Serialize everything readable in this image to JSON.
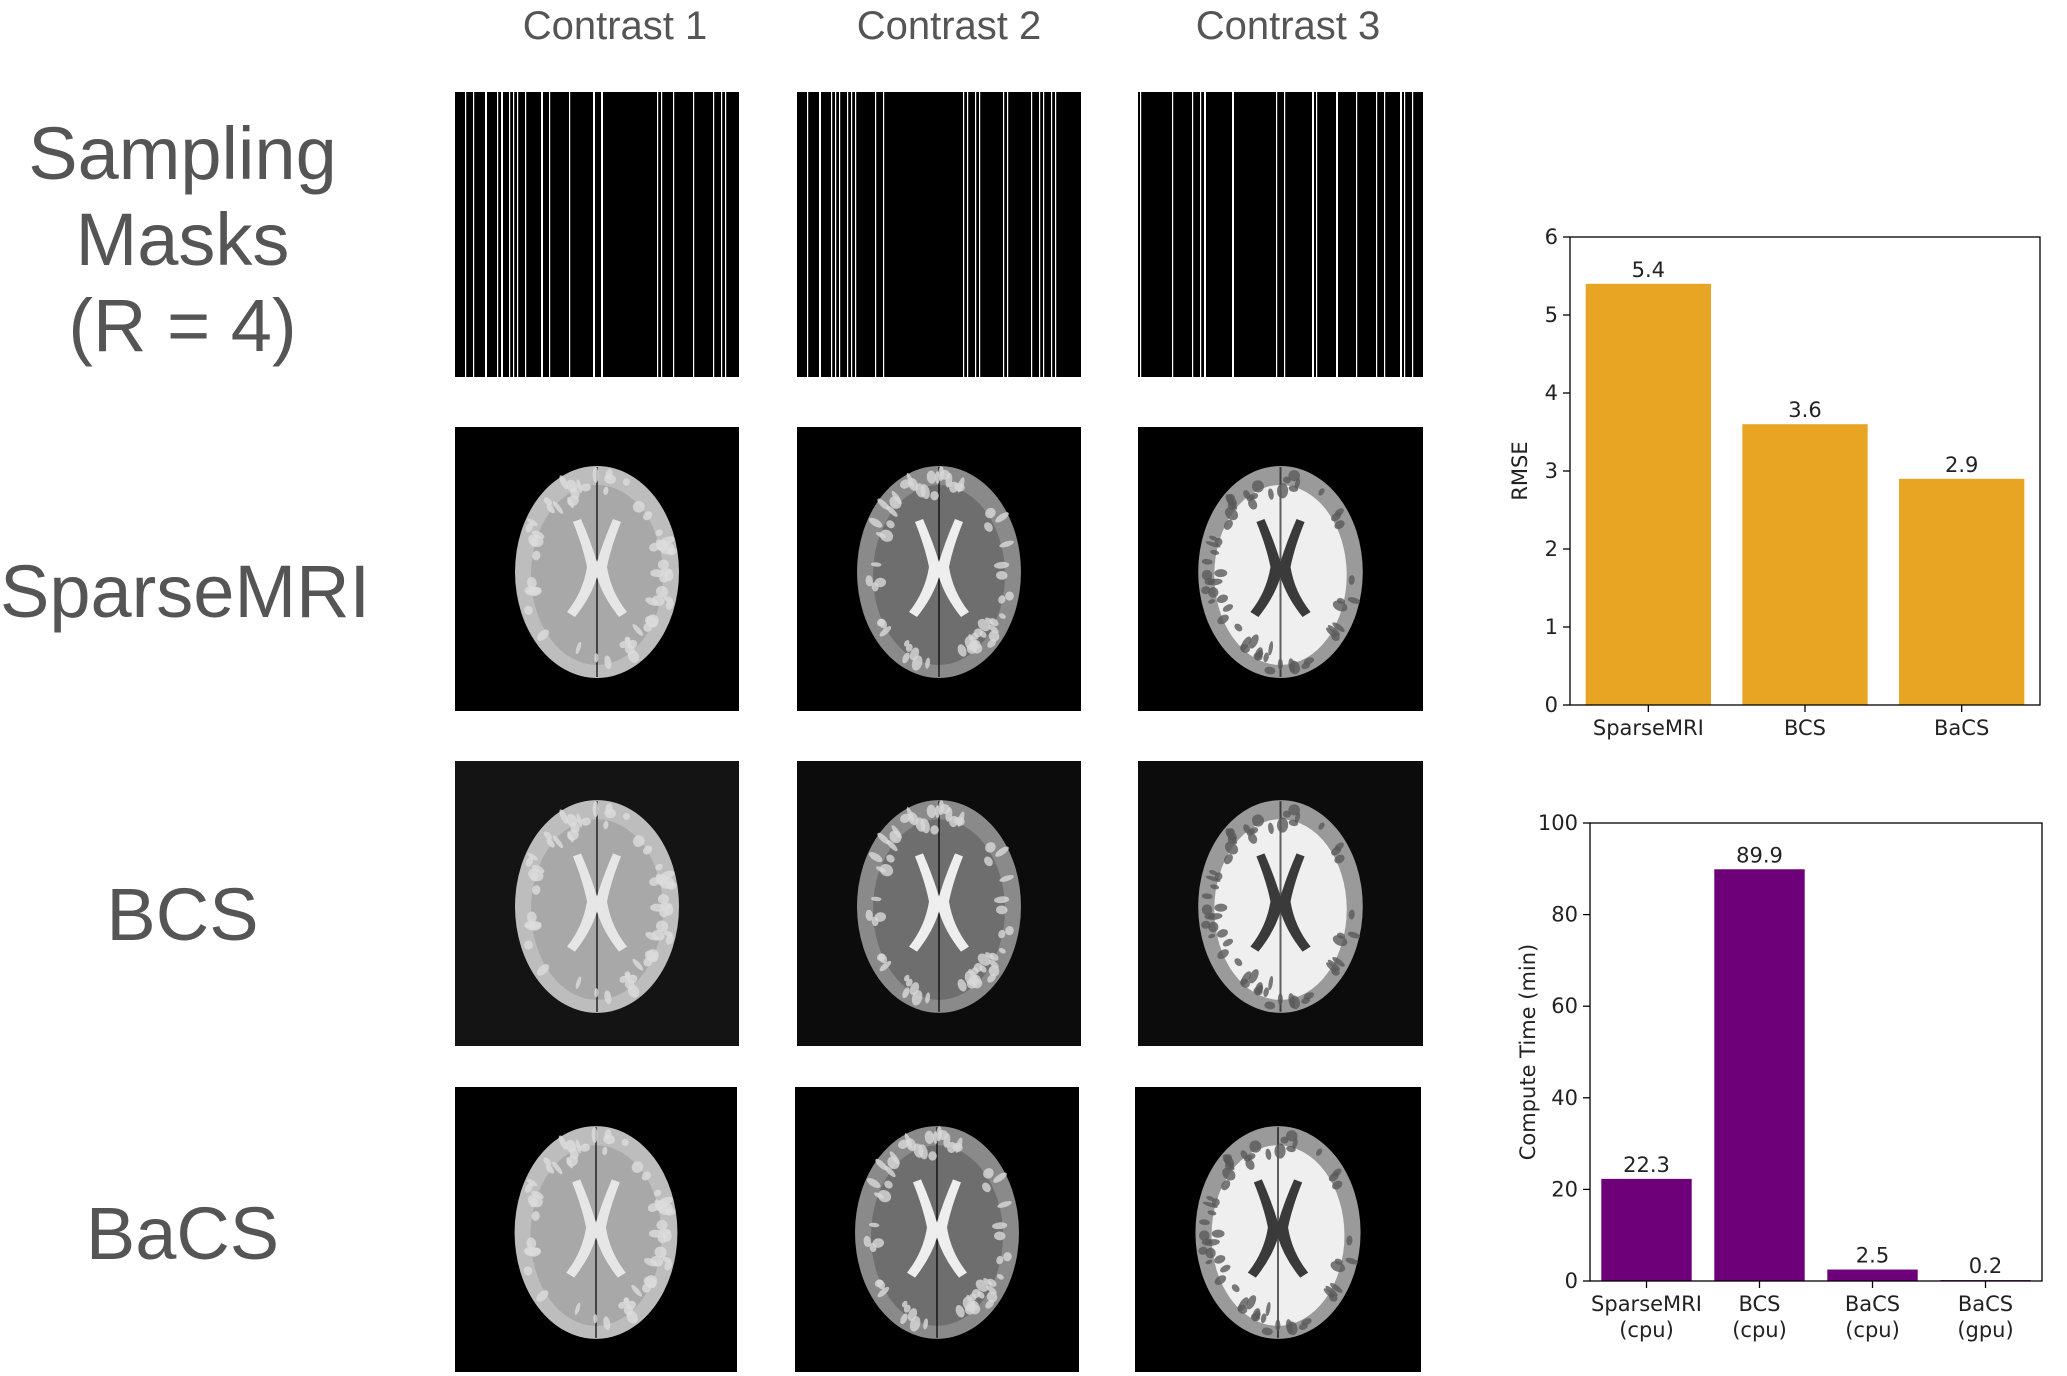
{
  "column_headers": [
    "Contrast 1",
    "Contrast 2",
    "Contrast 3"
  ],
  "row_labels": {
    "masks": [
      "Sampling",
      "Masks",
      "(R = 4)"
    ],
    "sparsemri": "SparseMRI",
    "bcs": "BCS",
    "bacs": "BaCS"
  },
  "colors": {
    "rmse_bar": "#E8A523",
    "time_bar": "#6E007A",
    "text_gray": "#555555"
  },
  "chart_data": [
    {
      "type": "bar",
      "categories": [
        "SparseMRI",
        "BCS",
        "BaCS"
      ],
      "values": [
        5.4,
        3.6,
        2.9
      ],
      "value_labels": [
        "5.4",
        "3.6",
        "2.9"
      ],
      "xlabel": "",
      "ylabel": "RMSE",
      "ylim": [
        0,
        6
      ],
      "yticks": [
        0,
        1,
        2,
        3,
        4,
        5,
        6
      ],
      "color": "#E8A523"
    },
    {
      "type": "bar",
      "categories": [
        [
          "SparseMRI",
          "(cpu)"
        ],
        [
          "BCS",
          "(cpu)"
        ],
        [
          "BaCS",
          "(cpu)"
        ],
        [
          "BaCS",
          "(gpu)"
        ]
      ],
      "values": [
        22.3,
        89.9,
        2.5,
        0.2
      ],
      "value_labels": [
        "22.3",
        "89.9",
        "2.5",
        "0.2"
      ],
      "xlabel": "",
      "ylabel": "Compute Time (min)",
      "ylim": [
        0,
        100
      ],
      "yticks": [
        0,
        20,
        40,
        60,
        80,
        100
      ],
      "color": "#6E007A"
    }
  ]
}
